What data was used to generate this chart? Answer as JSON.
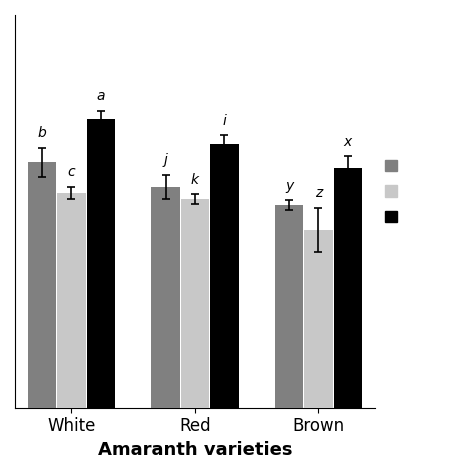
{
  "groups": [
    "White",
    "Red",
    "Brown"
  ],
  "series_colors": [
    "#808080",
    "#c8c8c8",
    "#000000"
  ],
  "values": [
    [
      80.0,
      77.5,
      83.5
    ],
    [
      78.0,
      77.0,
      81.5
    ],
    [
      76.5,
      74.5,
      79.5
    ]
  ],
  "errors": [
    [
      1.2,
      0.5,
      0.7
    ],
    [
      1.0,
      0.4,
      0.7
    ],
    [
      0.4,
      1.8,
      1.0
    ]
  ],
  "letter_labels": [
    [
      "b",
      "c",
      "a"
    ],
    [
      "j",
      "k",
      "i"
    ],
    [
      "y",
      "z",
      "x"
    ]
  ],
  "xlabel": "Amaranth varieties",
  "ylim": [
    60,
    92
  ],
  "bar_width": 0.25,
  "background_color": "#ffffff"
}
